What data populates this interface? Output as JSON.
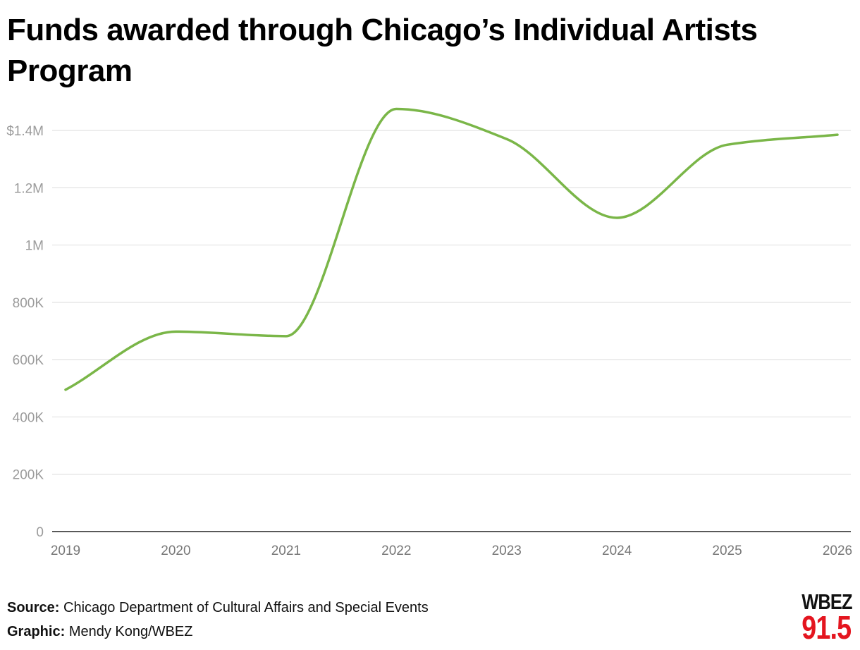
{
  "chart_data": {
    "type": "line",
    "title": "Funds awarded through Chicago’s Individual Artists Program",
    "xlabel": "",
    "ylabel": "",
    "x": [
      "2019",
      "2020",
      "2021",
      "2022",
      "2023",
      "2024",
      "2025",
      "2026"
    ],
    "series": [
      {
        "values": [
          495000,
          698000,
          682000,
          1475000,
          1370000,
          1095000,
          1350000,
          1385000
        ]
      }
    ],
    "ylim": [
      0,
      1400000
    ],
    "yticks": [
      {
        "value": 0,
        "label": "0"
      },
      {
        "value": 200000,
        "label": "200K"
      },
      {
        "value": 400000,
        "label": "400K"
      },
      {
        "value": 600000,
        "label": "600K"
      },
      {
        "value": 800000,
        "label": "800K"
      },
      {
        "value": 1000000,
        "label": "1M"
      },
      {
        "value": 1200000,
        "label": "1.2M"
      },
      {
        "value": 1400000,
        "label": "$1.4M"
      }
    ],
    "grid": true,
    "legend": "none",
    "line_color": "#7ab648",
    "grid_color": "#e2e2e2",
    "axis_color": "#222222"
  },
  "footer": {
    "source_label": "Source:",
    "source_text": "Chicago Department of Cultural Affairs and Special Events",
    "graphic_label": "Graphic:",
    "graphic_text": "Mendy Kong/WBEZ"
  },
  "logo": {
    "name": "WBEZ",
    "frequency": "91.5",
    "name_color": "#111111",
    "frequency_color": "#e4151f"
  }
}
